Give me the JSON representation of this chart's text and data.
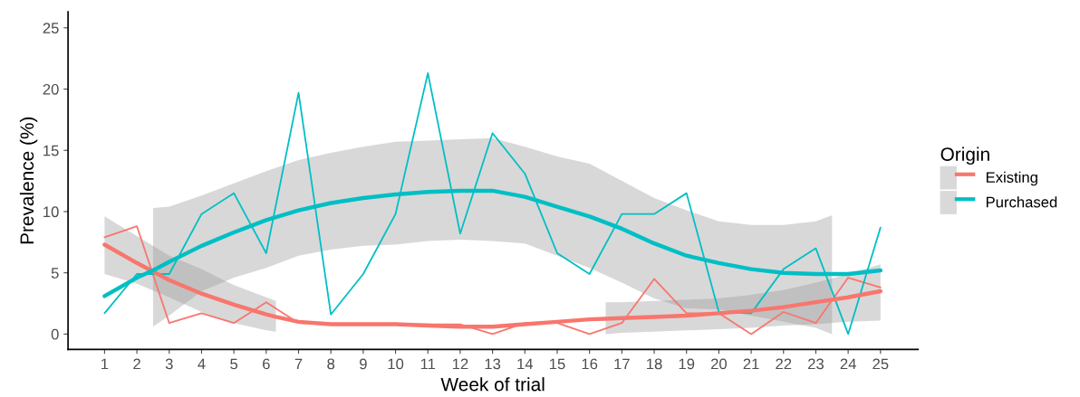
{
  "chart_data": {
    "type": "line",
    "xlabel": "Week of trial",
    "ylabel": "Prevalence (%)",
    "legend_title": "Origin",
    "legend": "right",
    "grid": false,
    "marker": "none",
    "line_style": "solid",
    "xlim": [
      -0.13,
      26.16
    ],
    "xticks": [
      1,
      2,
      3,
      4,
      5,
      6,
      7,
      8,
      9,
      10,
      11,
      12,
      13,
      14,
      15,
      16,
      17,
      18,
      19,
      20,
      21,
      22,
      23,
      24,
      25
    ],
    "ylim": [
      -1.25,
      26.3
    ],
    "yticks": [
      0,
      5,
      10,
      15,
      20,
      25
    ],
    "series": [
      {
        "color": "#f8766d",
        "x": [
          1,
          2,
          3,
          4,
          5,
          6,
          7,
          8,
          9,
          10,
          11,
          12,
          13,
          14,
          15,
          16,
          17,
          18,
          19,
          20,
          21,
          22,
          23,
          24,
          25
        ],
        "values": [
          7.9,
          8.8,
          0.9,
          1.7,
          0.9,
          2.6,
          0.9,
          0.8,
          0.8,
          0.8,
          0.8,
          0.8,
          0,
          0.9,
          0.9,
          0,
          0.9,
          4.5,
          1.7,
          1.7,
          0,
          1.8,
          0.9,
          4.6,
          3.8
        ]
      },
      {
        "color": "#00bfc4",
        "x": [
          1,
          2,
          3,
          4,
          5,
          6,
          7,
          8,
          9,
          10,
          11,
          12,
          13,
          14,
          15,
          16,
          17,
          18,
          19,
          20,
          21,
          22,
          23,
          24,
          25
        ],
        "values": [
          1.7,
          4.9,
          4.9,
          9.8,
          11.5,
          6.6,
          19.7,
          1.6,
          4.9,
          9.8,
          21.3,
          8.2,
          16.4,
          13.1,
          6.6,
          4.9,
          9.8,
          9.8,
          11.5,
          1.8,
          1.7,
          5.3,
          7.0,
          0,
          8.7
        ]
      },
      {
        "name": "Existing",
        "color": "#f8766d",
        "x": [
          1,
          2,
          3,
          4,
          5,
          6,
          6.3,
          7,
          8,
          9,
          10,
          11,
          12,
          13,
          14,
          15,
          16,
          16.5,
          17,
          18,
          19,
          20,
          21,
          22,
          23,
          24,
          25
        ],
        "values": [
          7.3,
          5.8,
          4.4,
          3.3,
          2.4,
          1.6,
          1.4,
          1.0,
          0.8,
          0.8,
          0.8,
          0.7,
          0.6,
          0.6,
          0.8,
          1.0,
          1.2,
          1.25,
          1.3,
          1.4,
          1.5,
          1.7,
          1.9,
          2.2,
          2.6,
          3.0,
          3.5
        ],
        "lower": [
          4.9,
          4.1,
          3.0,
          1.8,
          0.9,
          0.3,
          0.2,
          null,
          null,
          null,
          null,
          null,
          null,
          null,
          null,
          null,
          null,
          0.0,
          0.1,
          0.2,
          0.3,
          0.4,
          0.5,
          0.7,
          0.8,
          1.0,
          1.1
        ],
        "upper": [
          9.6,
          8.0,
          6.4,
          5.3,
          4.0,
          3.0,
          2.7,
          null,
          null,
          null,
          null,
          null,
          null,
          null,
          null,
          null,
          null,
          2.6,
          2.6,
          2.7,
          2.8,
          2.9,
          3.2,
          3.6,
          4.2,
          4.9,
          5.7
        ]
      },
      {
        "name": "Purchased",
        "color": "#00bfc4",
        "x": [
          1,
          2,
          2.5,
          3,
          4,
          5,
          6,
          7,
          8,
          9,
          10,
          11,
          12,
          13,
          14,
          15,
          16,
          17,
          18,
          19,
          20,
          21,
          22,
          23,
          23.5,
          24,
          25
        ],
        "values": [
          3.1,
          4.6,
          5.2,
          5.9,
          7.2,
          8.3,
          9.3,
          10.1,
          10.7,
          11.1,
          11.4,
          11.6,
          11.7,
          11.7,
          11.2,
          10.4,
          9.6,
          8.6,
          7.4,
          6.4,
          5.8,
          5.3,
          5.0,
          4.9,
          4.9,
          4.9,
          5.2
        ],
        "lower": [
          null,
          null,
          0.6,
          1.5,
          3.5,
          4.6,
          5.4,
          6.4,
          6.9,
          7.2,
          7.3,
          7.6,
          7.7,
          7.6,
          7.4,
          6.4,
          5.4,
          4.2,
          2.9,
          2.1,
          2.0,
          1.5,
          1.0,
          0.5,
          0.0,
          null,
          null
        ],
        "upper": [
          null,
          null,
          10.3,
          10.4,
          11.3,
          12.3,
          13.3,
          14.2,
          14.8,
          15.3,
          15.7,
          15.8,
          15.9,
          16.0,
          15.3,
          14.5,
          13.9,
          12.5,
          11.1,
          10.1,
          9.2,
          8.9,
          8.9,
          9.2,
          9.7,
          null,
          null
        ]
      }
    ]
  }
}
